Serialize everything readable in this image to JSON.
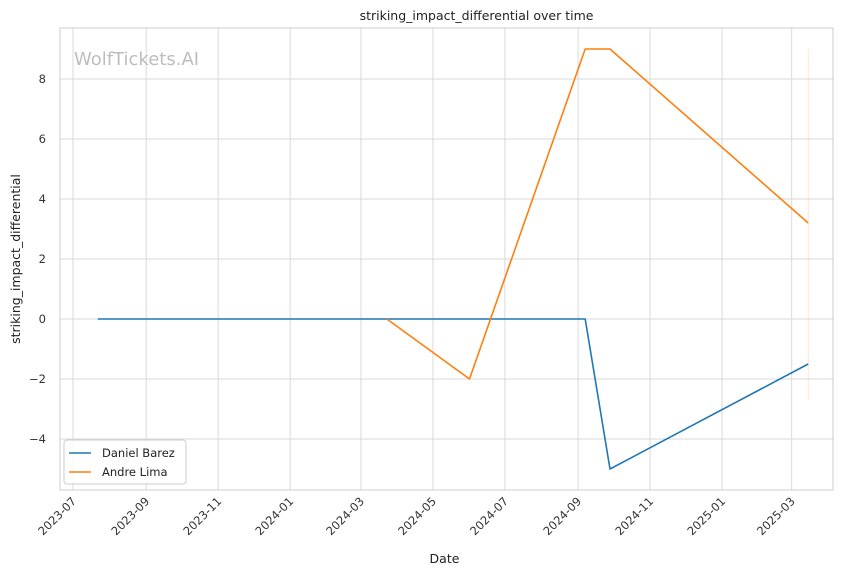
{
  "chart_data": {
    "type": "line",
    "title": "striking_impact_differential over time",
    "xlabel": "Date",
    "ylabel": "striking_impact_differential",
    "watermark": "WolfTickets.AI",
    "xlim": [
      "2023-06-20",
      "2025-04-05"
    ],
    "ylim": [
      -5.7,
      9.7
    ],
    "x_ticks": [
      "2023-07-01",
      "2023-09-01",
      "2023-11-01",
      "2024-01-01",
      "2024-03-01",
      "2024-05-01",
      "2024-07-01",
      "2024-09-01",
      "2024-11-01",
      "2025-01-01",
      "2025-03-01"
    ],
    "x_tick_labels": [
      "2023-07",
      "2023-09",
      "2023-11",
      "2024-01",
      "2024-03",
      "2024-05",
      "2024-07",
      "2024-09",
      "2024-11",
      "2025-01",
      "2025-03"
    ],
    "y_ticks": [
      -4,
      -2,
      0,
      2,
      4,
      6,
      8
    ],
    "y_tick_labels": [
      "−4",
      "−2",
      "0",
      "2",
      "4",
      "6",
      "8"
    ],
    "grid": true,
    "legend_position": "bottom-left",
    "series": [
      {
        "name": "Daniel Barez",
        "color": "#1f77b4",
        "x": [
          "2023-07-22",
          "2024-09-07",
          "2024-09-28",
          "2025-03-15"
        ],
        "y": [
          0,
          0,
          -5,
          -1.5
        ]
      },
      {
        "name": "Andre Lima",
        "color": "#ff7f0e",
        "x": [
          "2024-03-23",
          "2024-06-01",
          "2024-09-07",
          "2024-09-28",
          "2025-03-15"
        ],
        "y": [
          0,
          -2,
          9,
          9,
          3.2
        ]
      }
    ],
    "error_band": {
      "color": "#ff7f0e",
      "x": "2025-03-15",
      "y_range": [
        -2.7,
        9.0
      ]
    }
  }
}
